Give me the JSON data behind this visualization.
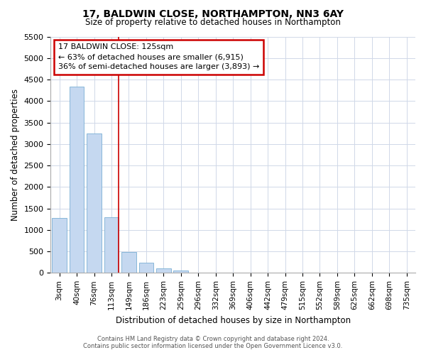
{
  "title1": "17, BALDWIN CLOSE, NORTHAMPTON, NN3 6AY",
  "title2": "Size of property relative to detached houses in Northampton",
  "xlabel": "Distribution of detached houses by size in Northampton",
  "ylabel": "Number of detached properties",
  "categories": [
    "3sqm",
    "40sqm",
    "76sqm",
    "113sqm",
    "149sqm",
    "186sqm",
    "223sqm",
    "259sqm",
    "296sqm",
    "332sqm",
    "369sqm",
    "406sqm",
    "442sqm",
    "479sqm",
    "515sqm",
    "552sqm",
    "589sqm",
    "625sqm",
    "662sqm",
    "698sqm",
    "735sqm"
  ],
  "values": [
    1270,
    4340,
    3250,
    1290,
    480,
    240,
    100,
    60,
    0,
    0,
    0,
    0,
    0,
    0,
    0,
    0,
    0,
    0,
    0,
    0,
    0
  ],
  "bar_color": "#c5d8f0",
  "bar_edge_color": "#7aafd4",
  "vline_x_index": 3,
  "vline_color": "#cc0000",
  "ylim": [
    0,
    5500
  ],
  "yticks": [
    0,
    500,
    1000,
    1500,
    2000,
    2500,
    3000,
    3500,
    4000,
    4500,
    5000,
    5500
  ],
  "annotation_title": "17 BALDWIN CLOSE: 125sqm",
  "annotation_line1": "← 63% of detached houses are smaller (6,915)",
  "annotation_line2": "36% of semi-detached houses are larger (3,893) →",
  "annotation_box_color": "#cc0000",
  "footer1": "Contains HM Land Registry data © Crown copyright and database right 2024.",
  "footer2": "Contains public sector information licensed under the Open Government Licence v3.0.",
  "background_color": "#ffffff",
  "grid_color": "#d0d8e8"
}
